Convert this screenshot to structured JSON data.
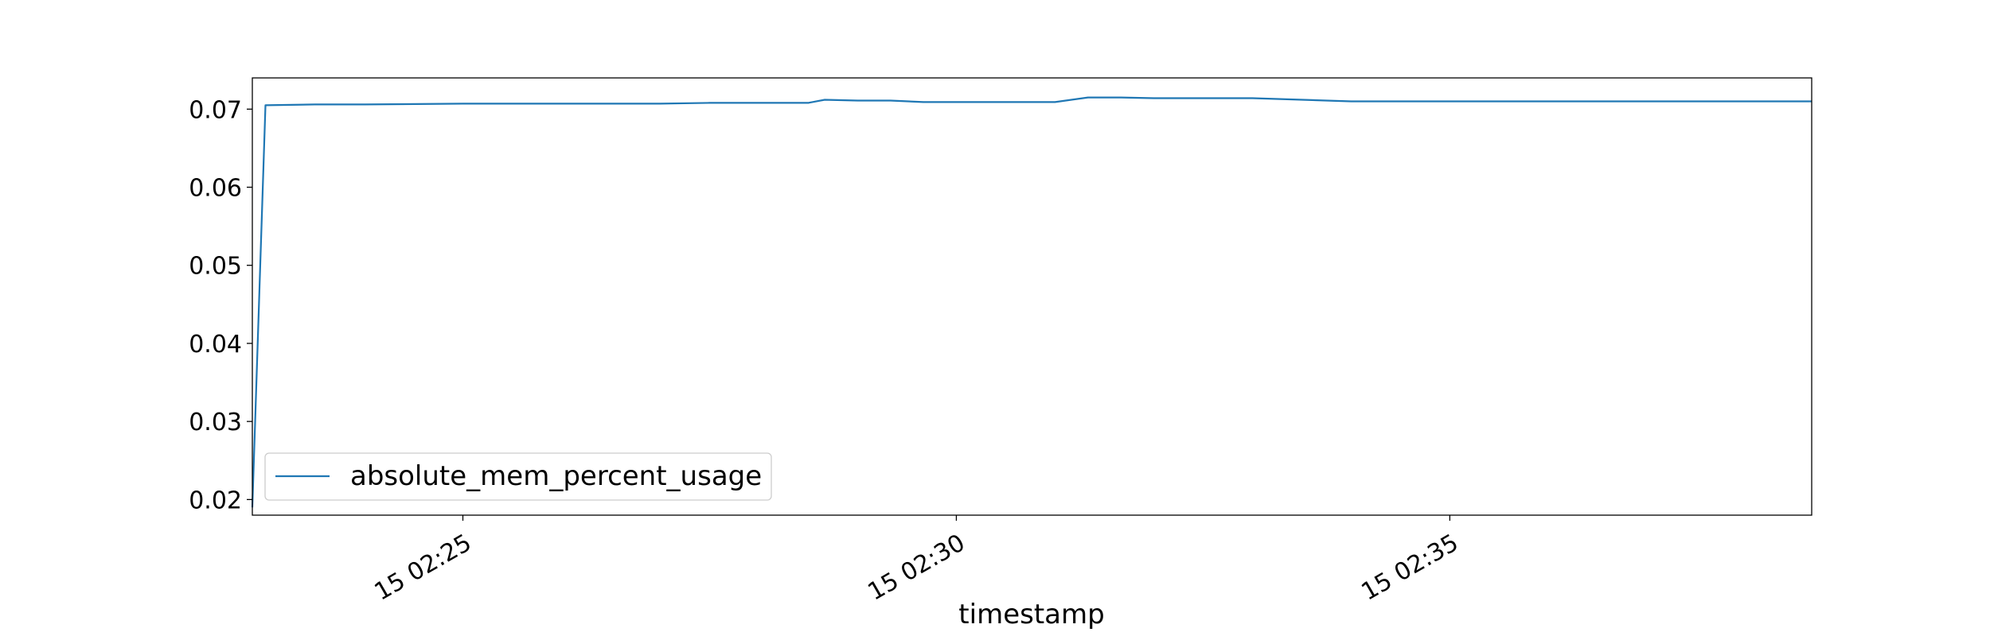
{
  "chart_data": {
    "type": "line",
    "title": "",
    "xlabel": "timestamp",
    "ylabel": "",
    "x_unit": "time",
    "xlim": [
      "02:22:52",
      "02:38:40"
    ],
    "ylim": [
      0.018,
      0.074
    ],
    "x_ticks": [
      {
        "value": "02:25:00",
        "label": "15 02:25"
      },
      {
        "value": "02:30:00",
        "label": "15 02:30"
      },
      {
        "value": "02:35:00",
        "label": "15 02:35"
      }
    ],
    "y_ticks": [
      {
        "value": 0.02,
        "label": "0.02"
      },
      {
        "value": 0.03,
        "label": "0.03"
      },
      {
        "value": 0.04,
        "label": "0.04"
      },
      {
        "value": 0.05,
        "label": "0.05"
      },
      {
        "value": 0.06,
        "label": "0.06"
      },
      {
        "value": 0.07,
        "label": "0.07"
      }
    ],
    "grid": false,
    "legend": {
      "placement": "lower-left"
    },
    "series": [
      {
        "name": "absolute_mem_percent_usage",
        "color": "#1f77b4",
        "x": [
          "02:22:52",
          "02:23:00",
          "02:23:30",
          "02:24:00",
          "02:25:00",
          "02:26:00",
          "02:27:00",
          "02:27:30",
          "02:28:30",
          "02:28:40",
          "02:29:00",
          "02:29:20",
          "02:29:40",
          "02:30:00",
          "02:30:20",
          "02:31:00",
          "02:31:20",
          "02:31:40",
          "02:32:00",
          "02:33:00",
          "02:34:00",
          "02:35:00",
          "02:36:00",
          "02:37:00",
          "02:38:00",
          "02:38:40"
        ],
        "y": [
          0.019,
          0.0705,
          0.0706,
          0.0706,
          0.0707,
          0.0707,
          0.0707,
          0.0708,
          0.0708,
          0.0712,
          0.0711,
          0.0711,
          0.0709,
          0.0709,
          0.0709,
          0.0709,
          0.0715,
          0.0715,
          0.0714,
          0.0714,
          0.071,
          0.071,
          0.071,
          0.071,
          0.071,
          0.071
        ]
      }
    ]
  }
}
